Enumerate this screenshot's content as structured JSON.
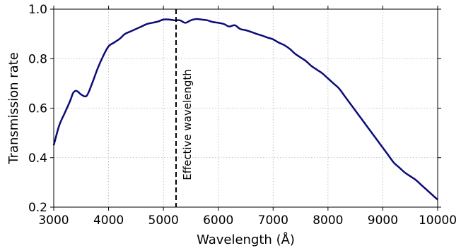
{
  "chart_data": {
    "type": "line",
    "xlabel": "Wavelength (Å)",
    "ylabel": "Transmission rate",
    "xlim": [
      3000,
      10000
    ],
    "ylim": [
      0.2,
      1.0
    ],
    "xticks": [
      3000,
      4000,
      5000,
      6000,
      7000,
      8000,
      9000,
      10000
    ],
    "yticks": [
      0.2,
      0.4,
      0.6,
      0.8,
      1.0
    ],
    "xtick_labels": [
      "3000",
      "4000",
      "5000",
      "6000",
      "7000",
      "8000",
      "9000",
      "10000"
    ],
    "ytick_labels": [
      "0.2",
      "0.4",
      "0.6",
      "0.8",
      "1.0"
    ],
    "grid": true,
    "series": [
      {
        "color": "#0b0b7a",
        "x": [
          3000,
          3100,
          3200,
          3300,
          3350,
          3400,
          3450,
          3500,
          3600,
          3700,
          3800,
          3900,
          4000,
          4100,
          4200,
          4300,
          4400,
          4500,
          4600,
          4700,
          4800,
          4900,
          5000,
          5100,
          5200,
          5300,
          5400,
          5500,
          5600,
          5700,
          5800,
          5900,
          6000,
          6100,
          6200,
          6300,
          6400,
          6500,
          6600,
          6700,
          6800,
          6900,
          7000,
          7100,
          7200,
          7300,
          7400,
          7500,
          7600,
          7700,
          7800,
          7900,
          8000,
          8100,
          8200,
          8300,
          8400,
          8500,
          8600,
          8700,
          8800,
          8900,
          9000,
          9100,
          9200,
          9300,
          9400,
          9500,
          9600,
          9700,
          9800,
          9900,
          10000
        ],
        "y": [
          0.45,
          0.53,
          0.58,
          0.63,
          0.66,
          0.67,
          0.665,
          0.655,
          0.65,
          0.7,
          0.76,
          0.81,
          0.85,
          0.865,
          0.88,
          0.9,
          0.91,
          0.92,
          0.93,
          0.94,
          0.945,
          0.95,
          0.958,
          0.958,
          0.955,
          0.955,
          0.945,
          0.955,
          0.96,
          0.958,
          0.955,
          0.948,
          0.945,
          0.94,
          0.93,
          0.935,
          0.92,
          0.915,
          0.908,
          0.9,
          0.893,
          0.885,
          0.878,
          0.865,
          0.855,
          0.84,
          0.82,
          0.805,
          0.79,
          0.77,
          0.755,
          0.74,
          0.72,
          0.7,
          0.68,
          0.65,
          0.62,
          0.59,
          0.56,
          0.53,
          0.5,
          0.47,
          0.44,
          0.41,
          0.38,
          0.36,
          0.34,
          0.325,
          0.31,
          0.29,
          0.27,
          0.25,
          0.23
        ]
      }
    ],
    "vline": {
      "x": 5230,
      "label": "Effective wavelength",
      "style": "dashed",
      "color": "#000000"
    }
  }
}
